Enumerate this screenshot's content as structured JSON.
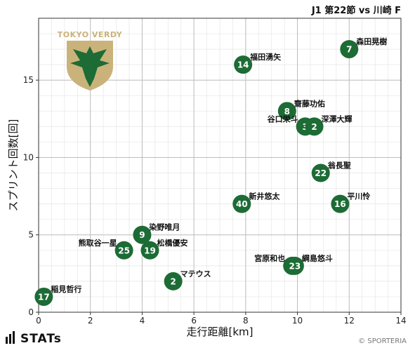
{
  "header": {
    "title": "J1 第22節 vs 川崎 F"
  },
  "footer": {
    "brand": "STATs",
    "copyright": "© SPORTERIA"
  },
  "logo": {
    "text": "TOKYO VERDY",
    "colors": {
      "gold": "#c9b37a",
      "green": "#1d6b35"
    }
  },
  "colors": {
    "marker": "#1d6b35",
    "grid": "#bdbdbd",
    "grid_minor": "#e6e6e6"
  },
  "chart_data": {
    "type": "scatter",
    "title": "",
    "xlabel": "走行距離[km]",
    "ylabel": "スプリント回数[回]",
    "xlim": [
      0,
      14
    ],
    "ylim": [
      0,
      19
    ],
    "xticks": [
      0,
      2,
      4,
      6,
      8,
      10,
      12,
      14
    ],
    "yticks": [
      0,
      5,
      10,
      15
    ],
    "grid": true,
    "points": [
      {
        "number": "17",
        "name": "稲見哲行",
        "x": 0.2,
        "y": 1,
        "label_side": "right"
      },
      {
        "number": "2",
        "name": "マテウス",
        "x": 5.2,
        "y": 2,
        "label_side": "right"
      },
      {
        "number": "25",
        "name": "熊取谷一星",
        "x": 3.3,
        "y": 4,
        "label_side": "left"
      },
      {
        "number": "19",
        "name": "松橋優安",
        "x": 4.3,
        "y": 4,
        "label_side": "right"
      },
      {
        "number": "9",
        "name": "染野唯月",
        "x": 4.0,
        "y": 5,
        "label_side": "right"
      },
      {
        "number": "40",
        "name": "新井悠太",
        "x": 7.85,
        "y": 7,
        "label_side": "right"
      },
      {
        "number": "14",
        "name": "福田湧矢",
        "x": 7.9,
        "y": 16,
        "label_side": "right"
      },
      {
        "number": "2",
        "name": "宮原和也",
        "x": 9.8,
        "y": 3,
        "label_side": "left"
      },
      {
        "number": "23",
        "name": "綱島悠斗",
        "x": 9.9,
        "y": 3,
        "label_side": "right"
      },
      {
        "number": "8",
        "name": "齋藤功佑",
        "x": 9.6,
        "y": 13,
        "label_side": "right"
      },
      {
        "number": "3",
        "name": "谷口栄斗",
        "x": 10.3,
        "y": 12,
        "label_side": "left"
      },
      {
        "number": "2",
        "name": "深澤大輝",
        "x": 10.65,
        "y": 12,
        "label_side": "right"
      },
      {
        "number": "22",
        "name": "翁長聖",
        "x": 10.9,
        "y": 9,
        "label_side": "right"
      },
      {
        "number": "16",
        "name": "平川怜",
        "x": 11.65,
        "y": 7,
        "label_side": "right"
      },
      {
        "number": "7",
        "name": "森田晃樹",
        "x": 12.0,
        "y": 17,
        "label_side": "right"
      }
    ]
  }
}
